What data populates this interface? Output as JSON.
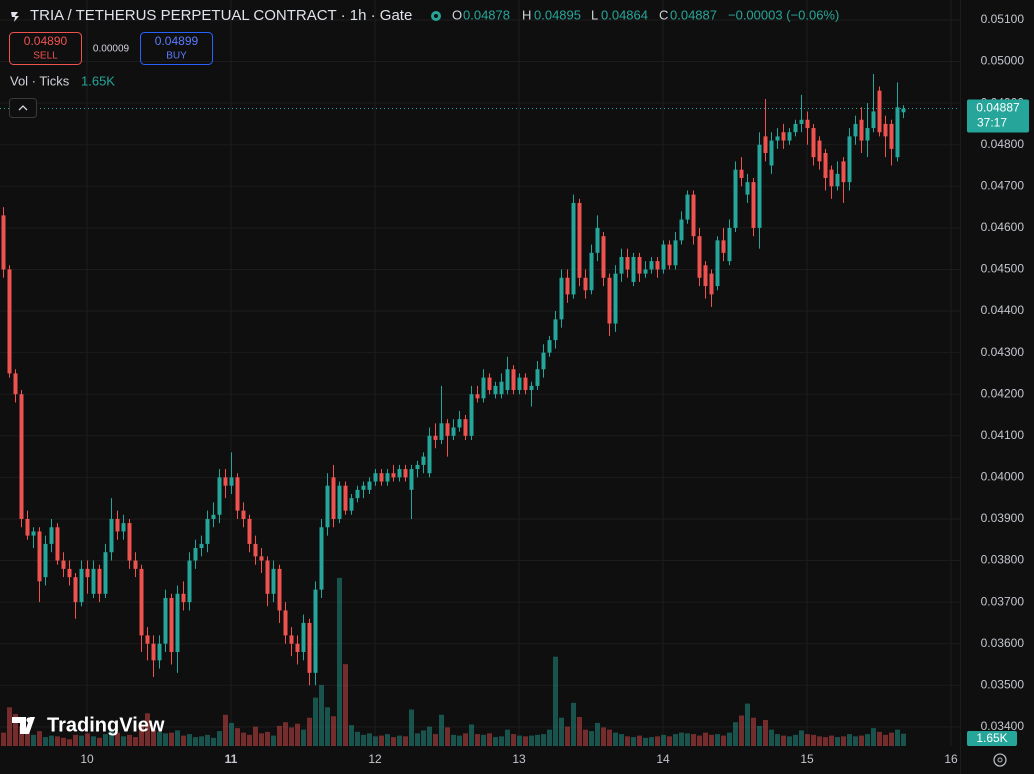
{
  "header": {
    "symbol": "TRIA / TETHERUS PERPETUAL CONTRACT · 1h · Gate",
    "readout_labels": [
      "O",
      "H",
      "L",
      "C"
    ],
    "change": "−0.00003 (−0.06%)",
    "sell_price": "0.04890",
    "sell": "SELL",
    "spread": "0.00009",
    "buy_price": "0.04899",
    "buy": "BUY",
    "countdown": "37:17",
    "watermark": "TradingView"
  },
  "chart_data": {
    "type": "candlestick",
    "up_color": "#26a69a",
    "down_color": "#ef5350",
    "grid": true,
    "xlim": [
      -0.5,
      159.5
    ],
    "xticks": [
      {
        "value": 14,
        "label": "10"
      },
      {
        "value": 38,
        "label": "11"
      },
      {
        "value": 62,
        "label": "12"
      },
      {
        "value": 86,
        "label": "13"
      },
      {
        "value": 110,
        "label": "14"
      },
      {
        "value": 134,
        "label": "15"
      },
      {
        "value": 158,
        "label": "16"
      }
    ],
    "ylim": [
      0.03354,
      0.05148
    ],
    "yticks": [
      {
        "value": 0.051,
        "label": "0.05100"
      },
      {
        "value": 0.05,
        "label": "0.05000"
      },
      {
        "value": 0.049,
        "label": "0.04900"
      },
      {
        "value": 0.048,
        "label": "0.04800"
      },
      {
        "value": 0.047,
        "label": "0.04700"
      },
      {
        "value": 0.046,
        "label": "0.04600"
      },
      {
        "value": 0.045,
        "label": "0.04500"
      },
      {
        "value": 0.044,
        "label": "0.04400"
      },
      {
        "value": 0.043,
        "label": "0.04300"
      },
      {
        "value": 0.042,
        "label": "0.04200"
      },
      {
        "value": 0.041,
        "label": "0.04100"
      },
      {
        "value": 0.04,
        "label": "0.04000"
      },
      {
        "value": 0.039,
        "label": "0.03900"
      },
      {
        "value": 0.038,
        "label": "0.03800"
      },
      {
        "value": 0.037,
        "label": "0.03700"
      },
      {
        "value": 0.036,
        "label": "0.03600"
      },
      {
        "value": 0.035,
        "label": "0.03500"
      },
      {
        "value": 0.034,
        "label": "0.03400"
      }
    ],
    "open": [
      0.0463,
      0.045,
      0.0425,
      0.042,
      0.039,
      0.0386,
      0.0387,
      0.0376,
      0.0384,
      0.0388,
      0.038,
      0.0378,
      0.0376,
      0.037,
      0.0378,
      0.0372,
      0.0378,
      0.0372,
      0.0382,
      0.039,
      0.0387,
      0.0389,
      0.038,
      0.0378,
      0.0362,
      0.036,
      0.0356,
      0.036,
      0.0371,
      0.0358,
      0.0372,
      0.037,
      0.038,
      0.0383,
      0.0384,
      0.039,
      0.0391,
      0.04,
      0.0398,
      0.04,
      0.0392,
      0.039,
      0.0384,
      0.0381,
      0.038,
      0.0372,
      0.0378,
      0.0368,
      0.0362,
      0.036,
      0.0358,
      0.0365,
      0.0353,
      0.0373,
      0.0388,
      0.04,
      0.039,
      0.0398,
      0.0392,
      0.0395,
      0.0397,
      0.0397,
      0.0399,
      0.0401,
      0.0399,
      0.0401,
      0.04,
      0.0402,
      0.0397,
      0.0402,
      0.0403,
      0.0401,
      0.041,
      0.0409,
      0.0413,
      0.041,
      0.0412,
      0.0414,
      0.041,
      0.042,
      0.0419,
      0.0424,
      0.042,
      0.042,
      0.0421,
      0.0426,
      0.0421,
      0.0424,
      0.0421,
      0.0422,
      0.0426,
      0.043,
      0.0433,
      0.0438,
      0.0448,
      0.0444,
      0.0466,
      0.0448,
      0.0445,
      0.0454,
      0.0458,
      0.0448,
      0.0437,
      0.0449,
      0.0453,
      0.0447,
      0.0453,
      0.0449,
      0.045,
      0.0452,
      0.045,
      0.0456,
      0.0451,
      0.0457,
      0.0462,
      0.0468,
      0.0458,
      0.0451,
      0.0449,
      0.0446,
      0.0457,
      0.0452,
      0.046,
      0.0474,
      0.0468,
      0.0471,
      0.046,
      0.0482,
      0.0475,
      0.0481,
      0.0483,
      0.0481,
      0.0483,
      0.0485,
      0.0486,
      0.0484,
      0.0481,
      0.0478,
      0.0474,
      0.047,
      0.0476,
      0.0471,
      0.0482,
      0.0486,
      0.0481,
      0.0484,
      0.0493,
      0.0485,
      0.0485,
      0.0477,
      0.04878
    ],
    "high": [
      0.0465,
      0.0451,
      0.0426,
      0.0421,
      0.0392,
      0.0388,
      0.0388,
      0.0386,
      0.039,
      0.0389,
      0.0382,
      0.038,
      0.0377,
      0.038,
      0.038,
      0.038,
      0.0379,
      0.0384,
      0.0395,
      0.0392,
      0.0391,
      0.039,
      0.0382,
      0.0379,
      0.0364,
      0.0362,
      0.0362,
      0.0373,
      0.0372,
      0.0374,
      0.0375,
      0.0382,
      0.0385,
      0.0386,
      0.0392,
      0.0394,
      0.0402,
      0.0402,
      0.0406,
      0.0401,
      0.0394,
      0.0391,
      0.0386,
      0.0383,
      0.0381,
      0.038,
      0.0379,
      0.037,
      0.0364,
      0.0362,
      0.0367,
      0.0366,
      0.0375,
      0.039,
      0.0401,
      0.0403,
      0.0399,
      0.0399,
      0.0396,
      0.0398,
      0.0399,
      0.04,
      0.0402,
      0.0402,
      0.0402,
      0.0403,
      0.0403,
      0.0403,
      0.0403,
      0.0404,
      0.0406,
      0.0412,
      0.0413,
      0.0422,
      0.0414,
      0.0414,
      0.0416,
      0.0415,
      0.0422,
      0.0422,
      0.0426,
      0.0425,
      0.0423,
      0.0425,
      0.0429,
      0.0427,
      0.0425,
      0.0425,
      0.0423,
      0.0428,
      0.0432,
      0.0434,
      0.044,
      0.045,
      0.045,
      0.0468,
      0.0467,
      0.045,
      0.0456,
      0.0463,
      0.0459,
      0.0449,
      0.0451,
      0.0455,
      0.0455,
      0.0454,
      0.0454,
      0.0452,
      0.0453,
      0.0453,
      0.0457,
      0.0457,
      0.0459,
      0.0464,
      0.0469,
      0.0469,
      0.046,
      0.0452,
      0.045,
      0.0458,
      0.046,
      0.0462,
      0.0476,
      0.0477,
      0.0473,
      0.0472,
      0.0483,
      0.0491,
      0.0483,
      0.0484,
      0.0485,
      0.0484,
      0.0486,
      0.0492,
      0.0488,
      0.0485,
      0.0482,
      0.0479,
      0.0475,
      0.0476,
      0.0477,
      0.0484,
      0.0487,
      0.0489,
      0.049,
      0.0497,
      0.0494,
      0.0487,
      0.0486,
      0.0495,
      0.04895
    ],
    "low": [
      0.0448,
      0.0424,
      0.0418,
      0.0388,
      0.0385,
      0.0383,
      0.037,
      0.0374,
      0.0382,
      0.0379,
      0.0376,
      0.0374,
      0.0366,
      0.0369,
      0.0372,
      0.0371,
      0.037,
      0.0371,
      0.038,
      0.0385,
      0.0385,
      0.0378,
      0.0376,
      0.0358,
      0.0356,
      0.0352,
      0.0354,
      0.0358,
      0.0355,
      0.0353,
      0.0368,
      0.0368,
      0.0378,
      0.0381,
      0.0382,
      0.0388,
      0.0389,
      0.0395,
      0.0396,
      0.039,
      0.0388,
      0.0382,
      0.0379,
      0.0377,
      0.0369,
      0.037,
      0.0365,
      0.036,
      0.0357,
      0.0355,
      0.0356,
      0.035,
      0.035,
      0.0371,
      0.0386,
      0.0388,
      0.0389,
      0.0391,
      0.0391,
      0.0394,
      0.0395,
      0.0396,
      0.0398,
      0.0398,
      0.0398,
      0.0399,
      0.0399,
      0.0399,
      0.039,
      0.04,
      0.0401,
      0.04,
      0.0407,
      0.0408,
      0.0405,
      0.0409,
      0.0411,
      0.0409,
      0.0409,
      0.0418,
      0.0418,
      0.042,
      0.0419,
      0.0419,
      0.042,
      0.042,
      0.042,
      0.042,
      0.0417,
      0.0421,
      0.0424,
      0.0429,
      0.0431,
      0.0436,
      0.0442,
      0.0443,
      0.0446,
      0.0443,
      0.0444,
      0.0452,
      0.0446,
      0.0434,
      0.0435,
      0.0447,
      0.0448,
      0.0446,
      0.0447,
      0.0448,
      0.0449,
      0.0448,
      0.0449,
      0.045,
      0.045,
      0.0456,
      0.0461,
      0.0456,
      0.0446,
      0.0443,
      0.0441,
      0.0445,
      0.0452,
      0.0451,
      0.0459,
      0.047,
      0.0466,
      0.0458,
      0.0455,
      0.0476,
      0.0473,
      0.0479,
      0.0479,
      0.048,
      0.0482,
      0.0483,
      0.048,
      0.0475,
      0.0474,
      0.0469,
      0.0467,
      0.0469,
      0.0466,
      0.0469,
      0.048,
      0.0478,
      0.0477,
      0.0483,
      0.0482,
      0.0477,
      0.0475,
      0.0476,
      0.04864
    ],
    "close": [
      0.045,
      0.0425,
      0.042,
      0.039,
      0.0386,
      0.0387,
      0.0375,
      0.0384,
      0.0388,
      0.038,
      0.0378,
      0.0376,
      0.037,
      0.0378,
      0.0376,
      0.0378,
      0.0372,
      0.0382,
      0.039,
      0.0387,
      0.0389,
      0.038,
      0.0378,
      0.0362,
      0.036,
      0.0356,
      0.036,
      0.0371,
      0.0358,
      0.0372,
      0.037,
      0.038,
      0.0383,
      0.0384,
      0.039,
      0.0391,
      0.04,
      0.0398,
      0.04,
      0.0392,
      0.039,
      0.0384,
      0.0381,
      0.038,
      0.0372,
      0.0378,
      0.0368,
      0.0362,
      0.036,
      0.0358,
      0.0365,
      0.0353,
      0.0373,
      0.0388,
      0.0398,
      0.039,
      0.0398,
      0.0392,
      0.0395,
      0.0397,
      0.0398,
      0.0399,
      0.0401,
      0.0399,
      0.0401,
      0.04,
      0.0402,
      0.04,
      0.0402,
      0.0403,
      0.0405,
      0.041,
      0.0409,
      0.0413,
      0.041,
      0.0412,
      0.0414,
      0.041,
      0.042,
      0.0419,
      0.0424,
      0.0421,
      0.0422,
      0.0423,
      0.0426,
      0.0421,
      0.0424,
      0.0421,
      0.0422,
      0.0426,
      0.043,
      0.0433,
      0.0438,
      0.0448,
      0.0444,
      0.0466,
      0.0448,
      0.0445,
      0.0454,
      0.046,
      0.0448,
      0.0437,
      0.0449,
      0.0453,
      0.045,
      0.0453,
      0.0449,
      0.045,
      0.0452,
      0.045,
      0.0456,
      0.0451,
      0.0457,
      0.0462,
      0.0468,
      0.0458,
      0.0448,
      0.0446,
      0.0444,
      0.0457,
      0.0454,
      0.046,
      0.0474,
      0.0472,
      0.0471,
      0.046,
      0.048,
      0.0478,
      0.0481,
      0.0482,
      0.0481,
      0.0483,
      0.0485,
      0.0486,
      0.0484,
      0.0477,
      0.0476,
      0.0472,
      0.047,
      0.0473,
      0.0471,
      0.0482,
      0.0485,
      0.0481,
      0.0484,
      0.0488,
      0.0483,
      0.0482,
      0.0479,
      0.0489,
      0.04887
    ],
    "volume": {
      "name": "Vol · Ticks",
      "last_label": "1.65K",
      "ylim": [
        0,
        25000
      ],
      "values": [
        1800,
        5200,
        4300,
        2600,
        2200,
        1500,
        2000,
        1200,
        1400,
        1300,
        1100,
        900,
        1500,
        1400,
        1700,
        1300,
        1100,
        1600,
        2200,
        1800,
        1300,
        1500,
        1200,
        2800,
        4400,
        2200,
        1900,
        1700,
        1800,
        2100,
        1400,
        1600,
        1200,
        1300,
        1500,
        1100,
        2000,
        4200,
        3100,
        2400,
        1800,
        1500,
        2600,
        1700,
        1900,
        1400,
        2700,
        3200,
        2500,
        3000,
        2200,
        3800,
        6500,
        8200,
        5200,
        4000,
        22600,
        11000,
        2800,
        1900,
        1500,
        1700,
        1300,
        1400,
        1600,
        1200,
        1400,
        1300,
        4900,
        1700,
        2100,
        2600,
        1600,
        4200,
        2500,
        1500,
        1400,
        1700,
        2900,
        1600,
        1500,
        1700,
        1200,
        1300,
        2200,
        1600,
        1400,
        1300,
        1400,
        1500,
        1600,
        2200,
        12000,
        3800,
        2600,
        5800,
        3900,
        2200,
        2000,
        3100,
        2500,
        2200,
        1800,
        1600,
        1300,
        1200,
        1400,
        1100,
        1200,
        1300,
        1500,
        1300,
        1600,
        1800,
        1700,
        1600,
        1400,
        1800,
        1500,
        1600,
        1400,
        1800,
        3200,
        4100,
        5700,
        3800,
        2700,
        3500,
        2200,
        1600,
        1400,
        1300,
        1500,
        2100,
        1600,
        1500,
        1300,
        1200,
        1400,
        1200,
        1300,
        1600,
        1300,
        1400,
        1600,
        2400,
        1900,
        1500,
        1800,
        2200,
        1650
      ]
    }
  }
}
